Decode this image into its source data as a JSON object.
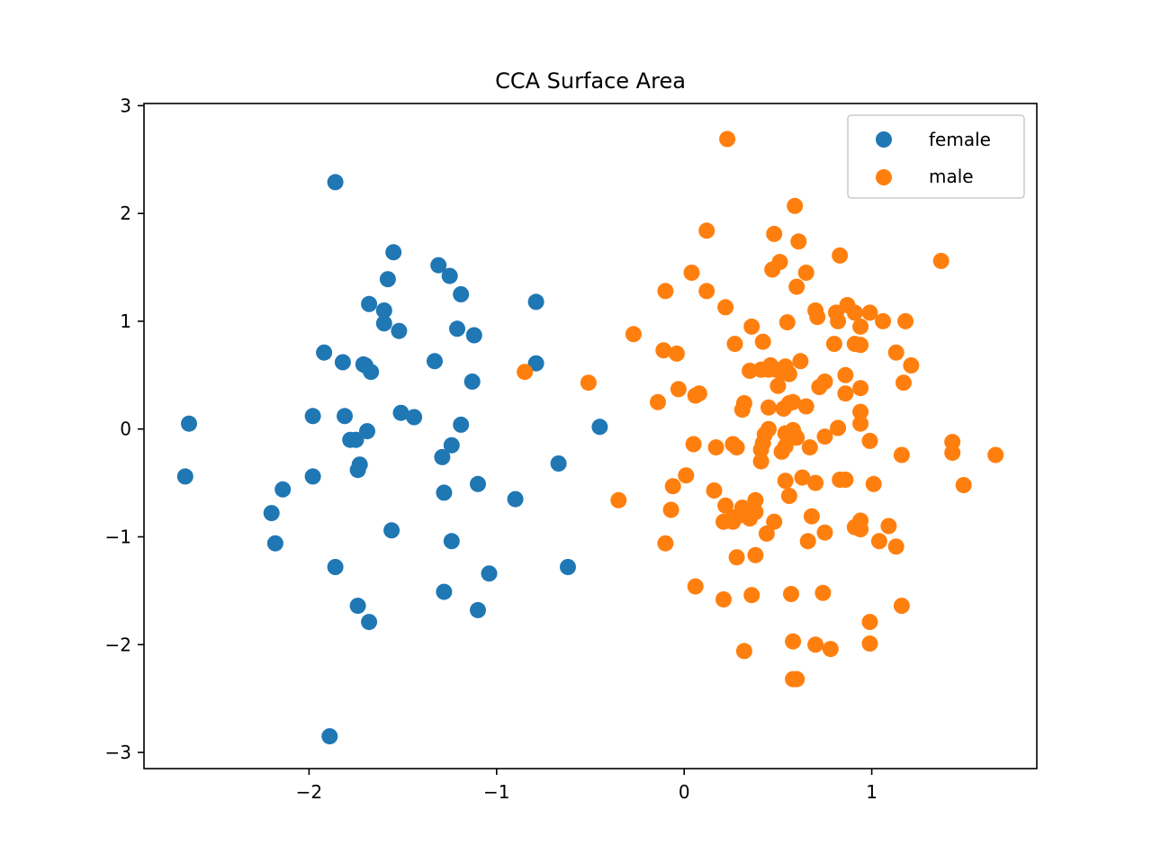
{
  "chart_data": {
    "type": "scatter",
    "title": "CCA Surface Area",
    "xlabel": "",
    "ylabel": "",
    "xlim": [
      -2.88,
      1.88
    ],
    "ylim": [
      -3.15,
      3.02
    ],
    "xticks": [
      -2,
      -1,
      0,
      1
    ],
    "xtick_labels": [
      "−2",
      "−1",
      "0",
      "1"
    ],
    "yticks": [
      3,
      2,
      1,
      0,
      -1,
      -2,
      -3
    ],
    "ytick_labels": [
      "3",
      "2",
      "1",
      "0",
      "−1",
      "−2",
      "−3"
    ],
    "grid": false,
    "legend_position": "top-right",
    "series": [
      {
        "name": "female",
        "color": "#1f77b4",
        "points": [
          [
            -2.64,
            0.05
          ],
          [
            -2.66,
            -0.44
          ],
          [
            -2.2,
            -0.78
          ],
          [
            -2.18,
            -1.06
          ],
          [
            -2.14,
            -0.56
          ],
          [
            -1.98,
            0.12
          ],
          [
            -1.98,
            -0.44
          ],
          [
            -1.92,
            0.71
          ],
          [
            -1.86,
            2.29
          ],
          [
            -1.86,
            -1.28
          ],
          [
            -1.89,
            -2.85
          ],
          [
            -1.82,
            0.62
          ],
          [
            -1.81,
            0.12
          ],
          [
            -1.78,
            -0.1
          ],
          [
            -1.75,
            -0.1
          ],
          [
            -1.74,
            -0.38
          ],
          [
            -1.73,
            -0.33
          ],
          [
            -1.74,
            -1.64
          ],
          [
            -1.71,
            0.6
          ],
          [
            -1.7,
            0.59
          ],
          [
            -1.69,
            -0.02
          ],
          [
            -1.68,
            -1.79
          ],
          [
            -1.68,
            1.16
          ],
          [
            -1.67,
            0.53
          ],
          [
            -1.6,
            1.1
          ],
          [
            -1.6,
            0.98
          ],
          [
            -1.58,
            1.39
          ],
          [
            -1.56,
            -0.94
          ],
          [
            -1.55,
            1.64
          ],
          [
            -1.52,
            0.91
          ],
          [
            -1.51,
            0.15
          ],
          [
            -1.44,
            0.11
          ],
          [
            -1.33,
            0.63
          ],
          [
            -1.31,
            1.52
          ],
          [
            -1.29,
            -0.26
          ],
          [
            -1.28,
            -0.59
          ],
          [
            -1.28,
            -1.51
          ],
          [
            -1.25,
            1.42
          ],
          [
            -1.24,
            -0.15
          ],
          [
            -1.24,
            -1.04
          ],
          [
            -1.21,
            0.93
          ],
          [
            -1.19,
            1.25
          ],
          [
            -1.19,
            0.04
          ],
          [
            -1.13,
            0.44
          ],
          [
            -1.12,
            0.87
          ],
          [
            -1.1,
            -0.51
          ],
          [
            -1.1,
            -1.68
          ],
          [
            -1.04,
            -1.34
          ],
          [
            -0.9,
            -0.65
          ],
          [
            -0.79,
            1.18
          ],
          [
            -0.79,
            0.61
          ],
          [
            -0.67,
            -0.32
          ],
          [
            -0.62,
            -1.28
          ],
          [
            -0.45,
            0.02
          ]
        ]
      },
      {
        "name": "male",
        "color": "#ff7f0e",
        "points": [
          [
            0.23,
            2.69
          ],
          [
            0.59,
            2.07
          ],
          [
            0.12,
            1.84
          ],
          [
            0.48,
            1.81
          ],
          [
            0.61,
            1.74
          ],
          [
            0.83,
            1.61
          ],
          [
            1.37,
            1.56
          ],
          [
            0.51,
            1.55
          ],
          [
            0.47,
            1.48
          ],
          [
            0.04,
            1.45
          ],
          [
            0.65,
            1.45
          ],
          [
            0.6,
            1.32
          ],
          [
            -0.1,
            1.28
          ],
          [
            0.12,
            1.28
          ],
          [
            0.22,
            1.13
          ],
          [
            0.87,
            1.15
          ],
          [
            0.7,
            1.1
          ],
          [
            0.81,
            1.08
          ],
          [
            0.91,
            1.08
          ],
          [
            0.99,
            1.08
          ],
          [
            0.71,
            1.04
          ],
          [
            0.82,
            1.0
          ],
          [
            1.06,
            1.0
          ],
          [
            1.18,
            1.0
          ],
          [
            0.55,
            0.99
          ],
          [
            0.36,
            0.95
          ],
          [
            0.94,
            0.95
          ],
          [
            -0.27,
            0.88
          ],
          [
            0.42,
            0.81
          ],
          [
            0.27,
            0.79
          ],
          [
            0.8,
            0.79
          ],
          [
            0.91,
            0.79
          ],
          [
            0.94,
            0.78
          ],
          [
            -0.11,
            0.73
          ],
          [
            -0.04,
            0.7
          ],
          [
            1.13,
            0.71
          ],
          [
            0.62,
            0.63
          ],
          [
            1.21,
            0.59
          ],
          [
            0.46,
            0.59
          ],
          [
            0.54,
            0.58
          ],
          [
            -0.85,
            0.53
          ],
          [
            0.35,
            0.54
          ],
          [
            0.41,
            0.55
          ],
          [
            0.45,
            0.55
          ],
          [
            0.49,
            0.55
          ],
          [
            0.52,
            0.53
          ],
          [
            0.56,
            0.51
          ],
          [
            0.86,
            0.5
          ],
          [
            0.75,
            0.44
          ],
          [
            -0.51,
            0.43
          ],
          [
            1.17,
            0.43
          ],
          [
            0.5,
            0.4
          ],
          [
            0.72,
            0.39
          ],
          [
            0.94,
            0.38
          ],
          [
            -0.03,
            0.37
          ],
          [
            0.06,
            0.31
          ],
          [
            0.08,
            0.33
          ],
          [
            0.86,
            0.33
          ],
          [
            -0.14,
            0.25
          ],
          [
            0.32,
            0.24
          ],
          [
            0.56,
            0.24
          ],
          [
            0.58,
            0.25
          ],
          [
            0.45,
            0.2
          ],
          [
            0.53,
            0.19
          ],
          [
            0.65,
            0.21
          ],
          [
            0.31,
            0.18
          ],
          [
            0.94,
            0.16
          ],
          [
            0.94,
            0.05
          ],
          [
            0.45,
            0.0
          ],
          [
            0.82,
            0.01
          ],
          [
            0.58,
            -0.01
          ],
          [
            0.43,
            -0.05
          ],
          [
            0.54,
            -0.04
          ],
          [
            0.6,
            -0.08
          ],
          [
            0.75,
            -0.07
          ],
          [
            0.99,
            -0.11
          ],
          [
            1.43,
            -0.12
          ],
          [
            0.42,
            -0.13
          ],
          [
            0.05,
            -0.14
          ],
          [
            0.26,
            -0.14
          ],
          [
            0.54,
            -0.16
          ],
          [
            0.67,
            -0.17
          ],
          [
            0.17,
            -0.17
          ],
          [
            0.28,
            -0.17
          ],
          [
            0.41,
            -0.19
          ],
          [
            0.52,
            -0.21
          ],
          [
            1.43,
            -0.22
          ],
          [
            1.16,
            -0.24
          ],
          [
            1.66,
            -0.24
          ],
          [
            0.41,
            -0.3
          ],
          [
            0.01,
            -0.43
          ],
          [
            0.63,
            -0.45
          ],
          [
            0.54,
            -0.48
          ],
          [
            0.83,
            -0.47
          ],
          [
            0.86,
            -0.47
          ],
          [
            0.7,
            -0.5
          ],
          [
            1.49,
            -0.52
          ],
          [
            -0.06,
            -0.53
          ],
          [
            1.01,
            -0.51
          ],
          [
            0.16,
            -0.57
          ],
          [
            0.56,
            -0.62
          ],
          [
            -0.35,
            -0.66
          ],
          [
            0.22,
            -0.71
          ],
          [
            0.38,
            -0.66
          ],
          [
            0.31,
            -0.73
          ],
          [
            0.34,
            -0.76
          ],
          [
            0.38,
            -0.77
          ],
          [
            0.26,
            -0.82
          ],
          [
            0.3,
            -0.8
          ],
          [
            0.35,
            -0.8
          ],
          [
            -0.07,
            -0.75
          ],
          [
            0.68,
            -0.81
          ],
          [
            0.21,
            -0.86
          ],
          [
            0.26,
            -0.86
          ],
          [
            0.35,
            -0.83
          ],
          [
            0.48,
            -0.86
          ],
          [
            0.94,
            -0.85
          ],
          [
            0.91,
            -0.91
          ],
          [
            0.94,
            -0.93
          ],
          [
            1.09,
            -0.9
          ],
          [
            0.75,
            -0.96
          ],
          [
            0.44,
            -0.97
          ],
          [
            0.66,
            -1.04
          ],
          [
            -0.1,
            -1.06
          ],
          [
            1.04,
            -1.04
          ],
          [
            1.13,
            -1.09
          ],
          [
            0.38,
            -1.17
          ],
          [
            0.28,
            -1.19
          ],
          [
            0.06,
            -1.46
          ],
          [
            0.74,
            -1.52
          ],
          [
            0.36,
            -1.54
          ],
          [
            0.57,
            -1.53
          ],
          [
            0.21,
            -1.58
          ],
          [
            1.16,
            -1.64
          ],
          [
            0.99,
            -1.79
          ],
          [
            0.58,
            -1.97
          ],
          [
            0.7,
            -2.0
          ],
          [
            0.99,
            -1.99
          ],
          [
            0.78,
            -2.04
          ],
          [
            0.32,
            -2.06
          ],
          [
            0.58,
            -2.32
          ],
          [
            0.6,
            -2.32
          ]
        ]
      }
    ]
  }
}
